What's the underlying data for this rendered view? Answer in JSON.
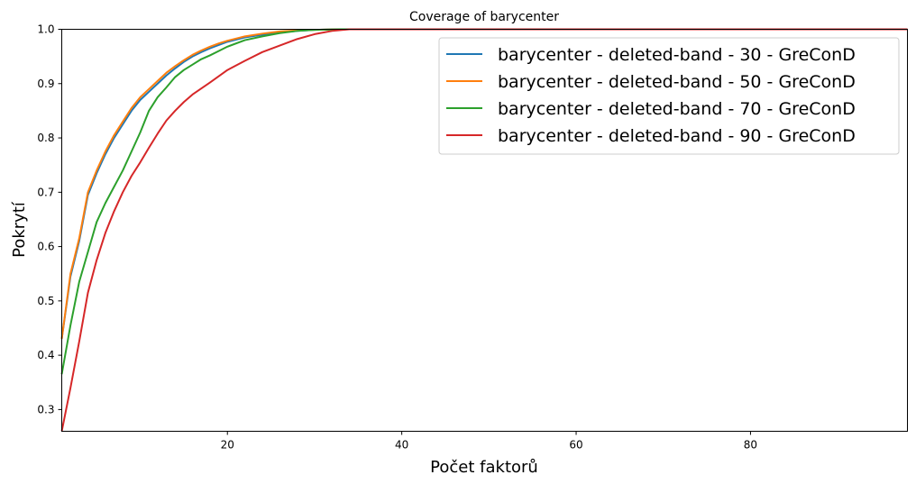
{
  "chart_data": {
    "type": "line",
    "title": "Coverage of barycenter",
    "xlabel": "Počet faktorů",
    "ylabel": "Pokrytí",
    "xlim": [
      1,
      98
    ],
    "ylim": [
      0.26,
      1.0
    ],
    "xticks": [
      20,
      40,
      60,
      80
    ],
    "xtick_labels": [
      "20",
      "40",
      "60",
      "80"
    ],
    "yticks": [
      0.3,
      0.4,
      0.5,
      0.6,
      0.7,
      0.8,
      0.9,
      1.0
    ],
    "ytick_labels": [
      "0.3",
      "0.4",
      "0.5",
      "0.6",
      "0.7",
      "0.8",
      "0.9",
      "1.0"
    ],
    "grid": false,
    "legend_position": "top-right",
    "series": [
      {
        "name": "barycenter - deleted-band - 30 - GreConD",
        "color": "#1f77b4",
        "x": [
          1,
          2,
          3,
          4,
          5,
          6,
          7,
          8,
          9,
          10,
          11,
          12,
          13,
          14,
          15,
          16,
          17,
          18,
          19,
          20,
          22,
          24,
          26,
          28,
          30,
          33,
          35,
          98
        ],
        "y": [
          0.43,
          0.545,
          0.61,
          0.695,
          0.735,
          0.77,
          0.8,
          0.825,
          0.85,
          0.87,
          0.885,
          0.9,
          0.915,
          0.928,
          0.94,
          0.95,
          0.958,
          0.965,
          0.971,
          0.977,
          0.985,
          0.99,
          0.994,
          0.997,
          0.999,
          1.0,
          1.0,
          1.0
        ]
      },
      {
        "name": "barycenter - deleted-band - 50 - GreConD",
        "color": "#ff7f0e",
        "x": [
          1,
          2,
          3,
          4,
          5,
          6,
          7,
          8,
          9,
          10,
          11,
          12,
          13,
          14,
          15,
          16,
          17,
          18,
          19,
          20,
          22,
          24,
          26,
          28,
          30,
          33,
          35,
          98
        ],
        "y": [
          0.43,
          0.55,
          0.615,
          0.7,
          0.74,
          0.775,
          0.805,
          0.83,
          0.855,
          0.875,
          0.89,
          0.905,
          0.92,
          0.932,
          0.943,
          0.953,
          0.961,
          0.968,
          0.974,
          0.979,
          0.987,
          0.992,
          0.996,
          0.998,
          0.999,
          1.0,
          1.0,
          1.0
        ]
      },
      {
        "name": "barycenter - deleted-band - 70 - GreConD",
        "color": "#2ca02c",
        "x": [
          1,
          2,
          3,
          4,
          5,
          6,
          7,
          8,
          9,
          10,
          11,
          12,
          13,
          14,
          15,
          16,
          17,
          18,
          19,
          20,
          22,
          24,
          26,
          28,
          30,
          33,
          98
        ],
        "y": [
          0.365,
          0.455,
          0.535,
          0.59,
          0.645,
          0.68,
          0.71,
          0.74,
          0.775,
          0.81,
          0.85,
          0.875,
          0.893,
          0.912,
          0.925,
          0.935,
          0.945,
          0.952,
          0.96,
          0.968,
          0.98,
          0.987,
          0.993,
          0.997,
          0.999,
          1.0,
          1.0
        ]
      },
      {
        "name": "barycenter - deleted-band - 90 - GreConD",
        "color": "#d62728",
        "x": [
          1,
          2,
          3,
          4,
          5,
          6,
          7,
          8,
          9,
          10,
          11,
          12,
          13,
          14,
          15,
          16,
          18,
          20,
          22,
          24,
          26,
          28,
          30,
          32,
          34,
          98
        ],
        "y": [
          0.26,
          0.34,
          0.425,
          0.515,
          0.575,
          0.625,
          0.665,
          0.7,
          0.73,
          0.755,
          0.782,
          0.808,
          0.832,
          0.85,
          0.866,
          0.88,
          0.902,
          0.925,
          0.942,
          0.958,
          0.97,
          0.982,
          0.991,
          0.997,
          1.0,
          1.0
        ]
      }
    ]
  }
}
